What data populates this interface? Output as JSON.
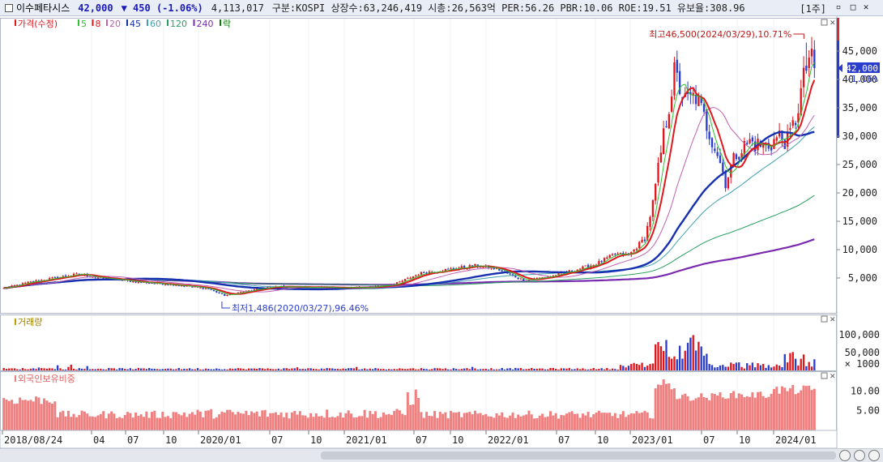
{
  "header": {
    "name": "이수페타시스",
    "price": "42,000",
    "change": "▼ 450 (-1.06%)",
    "volume": "4,113,017",
    "info": "구분:KOSPI  상장수:63,246,419  시총:26,563억  PER:56.26  PBR:10.06  ROE:19.51  유보율:308.96",
    "period": "[1주]"
  },
  "colors": {
    "up": "#e0161d",
    "down": "#2a3ccc",
    "ma5": "#2fbf2f",
    "ma8": "#e0161d",
    "ma20": "#c060b0",
    "ma45": "#1630b0",
    "ma60": "#40a0b0",
    "ma120": "#28a060",
    "ma240": "#7a2ab0",
    "foreign": "#f08080"
  },
  "chart_data": [
    {
      "type": "candlestick",
      "legend": [
        {
          "label": "가격(수정)",
          "color": "#e0161d"
        },
        {
          "label": "5",
          "color": "#2fbf2f"
        },
        {
          "label": "8",
          "color": "#e0161d"
        },
        {
          "label": "20",
          "color": "#c060b0"
        },
        {
          "label": "45",
          "color": "#1630b0"
        },
        {
          "label": "60",
          "color": "#40a0b0"
        },
        {
          "label": "120",
          "color": "#28a060"
        },
        {
          "label": "240",
          "color": "#7a2ab0"
        },
        {
          "label": "락",
          "color": "#0a7a0a"
        }
      ],
      "x_ticks": [
        "2018/08/24",
        "04",
        "07",
        "10",
        "2020/01",
        "07",
        "10",
        "2021/01",
        "07",
        "10",
        "2022/01",
        "07",
        "10",
        "2023/01",
        "07",
        "10",
        "2024/01"
      ],
      "y_ticks": [
        "45,000",
        "40,000",
        "35,000",
        "30,000",
        "25,000",
        "20,000",
        "15,000",
        "10,000",
        "5,000"
      ],
      "ylim": [
        0,
        50000
      ],
      "current_price_label": "42,000",
      "current_change_label": "-1.06%",
      "annotations": {
        "high": "최고46,500(2024/03/29),10.71%",
        "low": "최저1,486(2020/03/27),96.46%"
      },
      "anchors": [
        [
          0,
          3200
        ],
        [
          10,
          4300
        ],
        [
          20,
          5100
        ],
        [
          28,
          5700
        ],
        [
          36,
          5000
        ],
        [
          50,
          4300
        ],
        [
          64,
          3800
        ],
        [
          76,
          3100
        ],
        [
          82,
          1900
        ],
        [
          88,
          2500
        ],
        [
          100,
          3500
        ],
        [
          112,
          3400
        ],
        [
          124,
          3300
        ],
        [
          134,
          3300
        ],
        [
          145,
          3900
        ],
        [
          155,
          5900
        ],
        [
          165,
          6500
        ],
        [
          175,
          7200
        ],
        [
          183,
          6600
        ],
        [
          193,
          4600
        ],
        [
          203,
          5300
        ],
        [
          212,
          6400
        ],
        [
          220,
          7500
        ],
        [
          227,
          9200
        ],
        [
          232,
          9000
        ],
        [
          238,
          12000
        ],
        [
          241,
          18000
        ],
        [
          245,
          30000
        ],
        [
          249,
          41000
        ],
        [
          253,
          36000
        ],
        [
          257,
          37000
        ],
        [
          261,
          32000
        ],
        [
          265,
          27000
        ],
        [
          268,
          22000
        ],
        [
          272,
          27000
        ],
        [
          277,
          29000
        ],
        [
          283,
          28000
        ],
        [
          288,
          30000
        ],
        [
          291,
          29000
        ],
        [
          294,
          33000
        ],
        [
          297,
          40000
        ],
        [
          299,
          44000
        ],
        [
          301,
          42000
        ]
      ]
    },
    {
      "type": "bar",
      "title": "거래량",
      "y_ticks": [
        "100,000",
        "50,000"
      ],
      "unit": "× 1000"
    },
    {
      "type": "area",
      "title": "외국인보유비중",
      "y_ticks": [
        "10.00",
        "5.00"
      ]
    }
  ]
}
